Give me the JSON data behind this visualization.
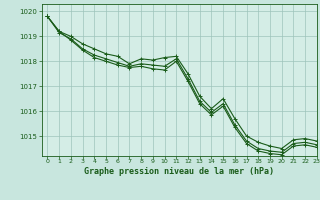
{
  "title": "Graphe pression niveau de la mer (hPa)",
  "background_color": "#c8e6de",
  "plot_bg_color": "#d4ede6",
  "grid_color": "#9ec4bb",
  "line_color": "#1a5c1a",
  "xlim": [
    -0.5,
    23
  ],
  "ylim": [
    1014.2,
    1020.3
  ],
  "yticks": [
    1015,
    1016,
    1017,
    1018,
    1019,
    1020
  ],
  "xticks": [
    0,
    1,
    2,
    3,
    4,
    5,
    6,
    7,
    8,
    9,
    10,
    11,
    12,
    13,
    14,
    15,
    16,
    17,
    18,
    19,
    20,
    21,
    22,
    23
  ],
  "series": [
    [
      1019.8,
      1019.2,
      1019.0,
      1018.7,
      1018.5,
      1018.3,
      1018.2,
      1017.9,
      1018.1,
      1018.05,
      1018.15,
      1018.2,
      1017.5,
      1016.6,
      1016.1,
      1016.5,
      1015.7,
      1015.0,
      1014.75,
      1014.6,
      1014.5,
      1014.85,
      1014.9,
      1014.8
    ],
    [
      1019.8,
      1019.15,
      1018.9,
      1018.5,
      1018.25,
      1018.1,
      1017.95,
      1017.8,
      1017.9,
      1017.85,
      1017.8,
      1018.1,
      1017.3,
      1016.4,
      1015.95,
      1016.3,
      1015.45,
      1014.8,
      1014.5,
      1014.4,
      1014.35,
      1014.7,
      1014.75,
      1014.65
    ],
    [
      1019.8,
      1019.2,
      1018.85,
      1018.45,
      1018.15,
      1018.0,
      1017.85,
      1017.75,
      1017.8,
      1017.7,
      1017.65,
      1018.0,
      1017.2,
      1016.3,
      1015.85,
      1016.2,
      1015.35,
      1014.7,
      1014.4,
      1014.3,
      1014.25,
      1014.6,
      1014.65,
      1014.55
    ]
  ],
  "marker": "+",
  "marker_size": 3.5,
  "linewidth": 0.8
}
